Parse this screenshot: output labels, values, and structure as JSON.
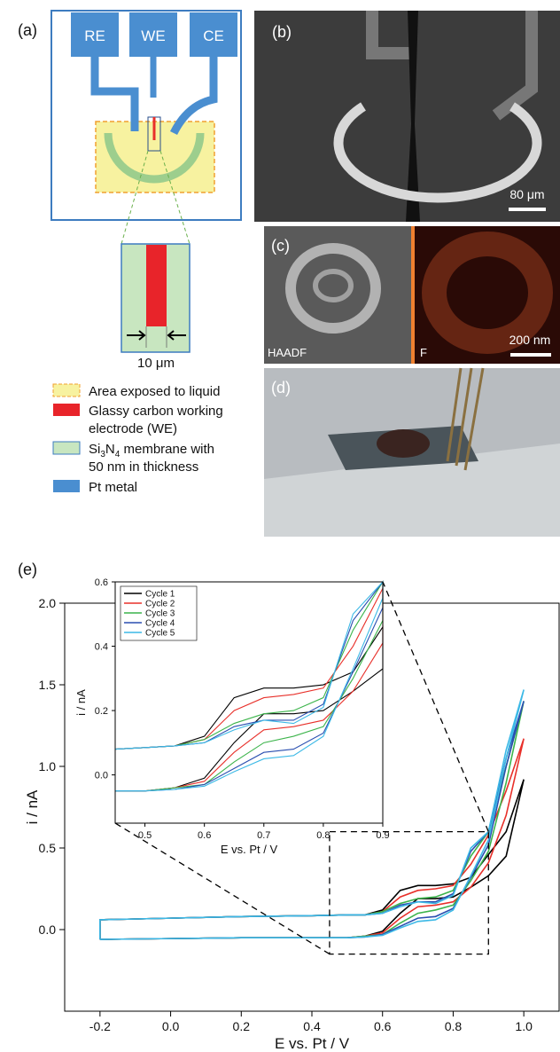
{
  "figure": {
    "panel_labels": [
      "(a)",
      "(b)",
      "(c)",
      "(d)",
      "(e)"
    ],
    "schematic": {
      "electrodes": [
        "RE",
        "WE",
        "CE"
      ],
      "gap": "10 μm",
      "legend": {
        "liquid": "Area exposed to liquid",
        "we": [
          "Glassy carbon working",
          "electrode (WE)"
        ],
        "membrane": {
          "formula": [
            "Si",
            "3",
            "N",
            "4"
          ],
          "rest": " membrane with",
          "line2": "50 nm in thickness"
        },
        "pt": "Pt metal"
      }
    },
    "micrographs": {
      "scale_b": "80 μm",
      "haadf": "HAADF",
      "f": "F",
      "scale_c": "200 nm"
    }
  },
  "chart_data": [
    {
      "type": "line",
      "x": [
        -0.2,
        0,
        0.2,
        0.4,
        0.5,
        0.55,
        0.6,
        0.65,
        0.7,
        0.75,
        0.8,
        0.85,
        0.9,
        0.95,
        1.0,
        0.95,
        0.9,
        0.85,
        0.8,
        0.75,
        0.7,
        0.65,
        0.6,
        0.55,
        0.5,
        0.4,
        0.2,
        0,
        -0.2,
        -0.2
      ],
      "xlim": [
        -0.3,
        1.1
      ],
      "xticks": [
        -0.2,
        {
          "value": 0,
          "label": "0.0"
        },
        0.2,
        0.4,
        0.6,
        0.8,
        {
          "value": 1,
          "label": "1.0"
        }
      ],
      "ylim": [
        -0.5,
        2.0
      ],
      "yticks": [
        {
          "value": 0,
          "label": "0.0"
        },
        0.5,
        {
          "value": 1,
          "label": "1.0"
        },
        1.5,
        {
          "value": 2,
          "label": "2.0"
        }
      ],
      "xlabel": "E vs. Pt / V",
      "ylabel": "i / nA",
      "series": [
        {
          "color": "#000000",
          "values": [
            -0.06,
            -0.055,
            -0.05,
            -0.05,
            -0.05,
            -0.04,
            -0.01,
            0.1,
            0.19,
            0.19,
            0.2,
            0.26,
            0.33,
            0.45,
            0.92,
            0.6,
            0.46,
            0.32,
            0.28,
            0.27,
            0.27,
            0.24,
            0.12,
            0.09,
            0.09,
            0.085,
            0.08,
            0.07,
            0.06,
            -0.06
          ]
        },
        {
          "color": "#e8302a",
          "values": [
            -0.06,
            -0.055,
            -0.05,
            -0.05,
            -0.05,
            -0.04,
            -0.02,
            0.07,
            0.14,
            0.15,
            0.17,
            0.26,
            0.41,
            0.7,
            1.17,
            0.85,
            0.58,
            0.4,
            0.27,
            0.25,
            0.24,
            0.2,
            0.11,
            0.09,
            0.09,
            0.085,
            0.08,
            0.07,
            0.06,
            -0.06
          ]
        },
        {
          "color": "#3cb44b",
          "values": [
            -0.06,
            -0.055,
            -0.05,
            -0.05,
            -0.05,
            -0.04,
            -0.03,
            0.04,
            0.1,
            0.12,
            0.15,
            0.3,
            0.48,
            0.9,
            1.4,
            1.0,
            0.6,
            0.45,
            0.24,
            0.2,
            0.19,
            0.16,
            0.11,
            0.09,
            0.09,
            0.085,
            0.08,
            0.07,
            0.06,
            -0.06
          ]
        },
        {
          "color": "#2a4fb0",
          "values": [
            -0.06,
            -0.055,
            -0.05,
            -0.05,
            -0.05,
            -0.045,
            -0.03,
            0.02,
            0.07,
            0.08,
            0.13,
            0.32,
            0.52,
            1.0,
            1.4,
            1.05,
            0.6,
            0.48,
            0.22,
            0.17,
            0.17,
            0.15,
            0.1,
            0.09,
            0.09,
            0.085,
            0.08,
            0.07,
            0.06,
            -0.06
          ]
        },
        {
          "color": "#3cb9e6",
          "values": [
            -0.06,
            -0.055,
            -0.05,
            -0.05,
            -0.05,
            -0.045,
            -0.035,
            0.01,
            0.05,
            0.06,
            0.12,
            0.33,
            0.55,
            1.05,
            1.47,
            1.1,
            0.6,
            0.5,
            0.21,
            0.16,
            0.17,
            0.14,
            0.1,
            0.09,
            0.09,
            0.085,
            0.08,
            0.07,
            0.06,
            -0.06
          ]
        }
      ]
    },
    {
      "type": "line",
      "x": [
        0.45,
        0.5,
        0.55,
        0.6,
        0.65,
        0.7,
        0.75,
        0.8,
        0.85,
        0.9,
        0.9,
        0.85,
        0.8,
        0.75,
        0.7,
        0.65,
        0.6,
        0.55,
        0.5,
        0.45
      ],
      "xlim": [
        0.45,
        0.9
      ],
      "xticks": [
        0.5,
        0.6,
        0.7,
        0.8,
        0.9
      ],
      "ylim": [
        -0.15,
        0.6
      ],
      "yticks": [
        {
          "value": 0,
          "label": "0.0"
        },
        0.2,
        0.4,
        0.6
      ],
      "xlabel": "E vs. Pt / V",
      "ylabel": "i / nA",
      "series": [
        {
          "name": "Cycle 1",
          "color": "#000000",
          "values": [
            -0.05,
            -0.05,
            -0.04,
            -0.01,
            0.1,
            0.19,
            0.19,
            0.2,
            0.26,
            0.33,
            0.46,
            0.32,
            0.28,
            0.27,
            0.27,
            0.24,
            0.12,
            0.09,
            0.085,
            0.08
          ]
        },
        {
          "name": "Cycle 2",
          "color": "#e8302a",
          "values": [
            -0.05,
            -0.05,
            -0.04,
            -0.02,
            0.07,
            0.14,
            0.15,
            0.17,
            0.26,
            0.41,
            0.58,
            0.4,
            0.27,
            0.25,
            0.24,
            0.2,
            0.11,
            0.09,
            0.085,
            0.08
          ]
        },
        {
          "name": "Cycle 3",
          "color": "#3cb44b",
          "values": [
            -0.05,
            -0.05,
            -0.04,
            -0.03,
            0.04,
            0.1,
            0.12,
            0.15,
            0.3,
            0.48,
            0.6,
            0.45,
            0.24,
            0.2,
            0.19,
            0.16,
            0.11,
            0.09,
            0.085,
            0.08
          ]
        },
        {
          "name": "Cycle 4",
          "color": "#2a4fb0",
          "values": [
            -0.05,
            -0.05,
            -0.045,
            -0.03,
            0.02,
            0.07,
            0.08,
            0.13,
            0.32,
            0.52,
            0.6,
            0.48,
            0.22,
            0.17,
            0.17,
            0.15,
            0.1,
            0.09,
            0.085,
            0.08
          ]
        },
        {
          "name": "Cycle 5",
          "color": "#3cb9e6",
          "values": [
            -0.05,
            -0.05,
            -0.045,
            -0.035,
            0.01,
            0.05,
            0.06,
            0.12,
            0.33,
            0.55,
            0.6,
            0.5,
            0.21,
            0.16,
            0.17,
            0.14,
            0.1,
            0.09,
            0.085,
            0.08
          ]
        }
      ]
    }
  ]
}
